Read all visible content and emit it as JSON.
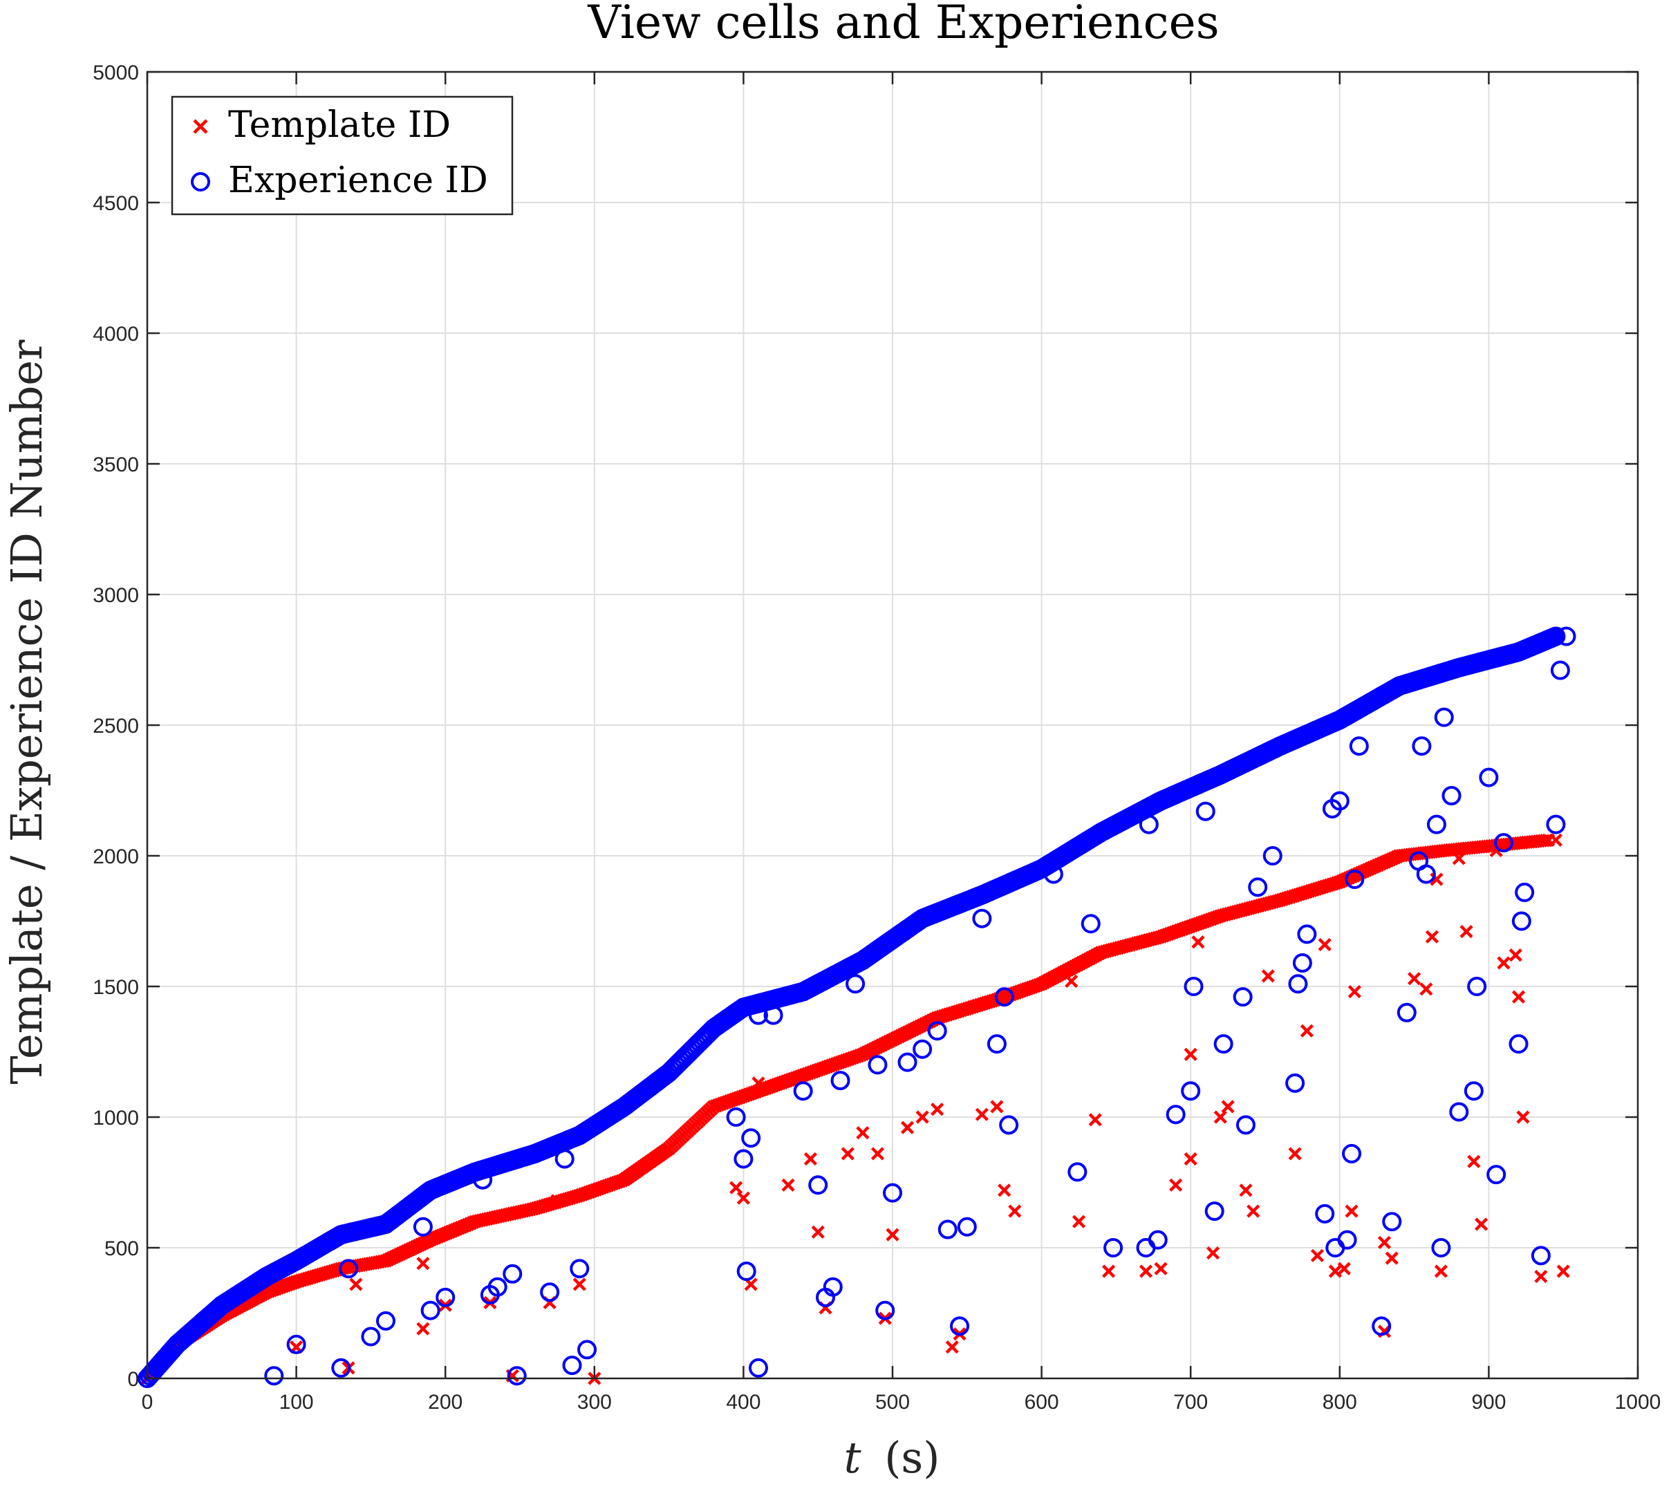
{
  "chart_data": {
    "type": "scatter",
    "title": "View cells and Experiences",
    "xlabel": "t (s)",
    "xlabel_var": "t",
    "xlabel_unit": "(s)",
    "ylabel": "Template / Experience ID Number",
    "xlim": [
      0,
      1000
    ],
    "ylim": [
      0,
      5000
    ],
    "xticks": [
      0,
      100,
      200,
      300,
      400,
      500,
      600,
      700,
      800,
      900,
      1000
    ],
    "yticks": [
      0,
      500,
      1000,
      1500,
      2000,
      2500,
      3000,
      3500,
      4000,
      4500,
      5000
    ],
    "grid": true,
    "legend_position": "top-left",
    "series": [
      {
        "name": "Template ID",
        "marker": "x",
        "color": "#ff0000",
        "trend": [
          [
            0,
            0
          ],
          [
            20,
            130
          ],
          [
            50,
            240
          ],
          [
            80,
            330
          ],
          [
            100,
            370
          ],
          [
            130,
            420
          ],
          [
            160,
            450
          ],
          [
            190,
            530
          ],
          [
            220,
            600
          ],
          [
            260,
            650
          ],
          [
            290,
            700
          ],
          [
            320,
            760
          ],
          [
            350,
            880
          ],
          [
            380,
            1040
          ],
          [
            410,
            1100
          ],
          [
            440,
            1160
          ],
          [
            480,
            1240
          ],
          [
            530,
            1380
          ],
          [
            570,
            1450
          ],
          [
            600,
            1510
          ],
          [
            640,
            1630
          ],
          [
            680,
            1690
          ],
          [
            720,
            1770
          ],
          [
            760,
            1830
          ],
          [
            800,
            1900
          ],
          [
            840,
            2000
          ],
          [
            870,
            2020
          ],
          [
            940,
            2060
          ]
        ],
        "scattered": [
          [
            5,
            20
          ],
          [
            100,
            120
          ],
          [
            135,
            40
          ],
          [
            140,
            360
          ],
          [
            185,
            190
          ],
          [
            185,
            440
          ],
          [
            200,
            280
          ],
          [
            230,
            290
          ],
          [
            245,
            10
          ],
          [
            270,
            290
          ],
          [
            275,
            680
          ],
          [
            290,
            360
          ],
          [
            300,
            0
          ],
          [
            395,
            730
          ],
          [
            400,
            690
          ],
          [
            405,
            360
          ],
          [
            410,
            1130
          ],
          [
            430,
            740
          ],
          [
            445,
            840
          ],
          [
            450,
            560
          ],
          [
            455,
            270
          ],
          [
            470,
            860
          ],
          [
            480,
            940
          ],
          [
            490,
            860
          ],
          [
            495,
            230
          ],
          [
            500,
            550
          ],
          [
            510,
            960
          ],
          [
            520,
            1000
          ],
          [
            530,
            1030
          ],
          [
            540,
            120
          ],
          [
            545,
            170
          ],
          [
            560,
            1010
          ],
          [
            570,
            1040
          ],
          [
            575,
            720
          ],
          [
            582,
            640
          ],
          [
            620,
            1520
          ],
          [
            625,
            600
          ],
          [
            636,
            990
          ],
          [
            645,
            410
          ],
          [
            670,
            410
          ],
          [
            680,
            420
          ],
          [
            690,
            740
          ],
          [
            700,
            840
          ],
          [
            700,
            1240
          ],
          [
            705,
            1670
          ],
          [
            715,
            480
          ],
          [
            720,
            1000
          ],
          [
            725,
            1040
          ],
          [
            737,
            720
          ],
          [
            742,
            640
          ],
          [
            752,
            1540
          ],
          [
            770,
            860
          ],
          [
            778,
            1330
          ],
          [
            785,
            470
          ],
          [
            790,
            1660
          ],
          [
            797,
            410
          ],
          [
            803,
            420
          ],
          [
            808,
            640
          ],
          [
            810,
            1480
          ],
          [
            830,
            180
          ],
          [
            830,
            520
          ],
          [
            835,
            460
          ],
          [
            850,
            1530
          ],
          [
            858,
            1490
          ],
          [
            862,
            1690
          ],
          [
            865,
            1910
          ],
          [
            868,
            410
          ],
          [
            880,
            1990
          ],
          [
            885,
            1710
          ],
          [
            890,
            830
          ],
          [
            895,
            590
          ],
          [
            905,
            2020
          ],
          [
            910,
            1590
          ],
          [
            918,
            1620
          ],
          [
            920,
            1460
          ],
          [
            923,
            1000
          ],
          [
            935,
            390
          ],
          [
            945,
            2060
          ],
          [
            950,
            410
          ]
        ]
      },
      {
        "name": "Experience ID",
        "marker": "o",
        "color": "#0000ff",
        "trend": [
          [
            0,
            0
          ],
          [
            20,
            130
          ],
          [
            50,
            280
          ],
          [
            80,
            390
          ],
          [
            100,
            450
          ],
          [
            130,
            550
          ],
          [
            160,
            590
          ],
          [
            190,
            720
          ],
          [
            220,
            790
          ],
          [
            260,
            860
          ],
          [
            290,
            930
          ],
          [
            320,
            1040
          ],
          [
            350,
            1170
          ],
          [
            380,
            1340
          ],
          [
            400,
            1420
          ],
          [
            440,
            1480
          ],
          [
            480,
            1600
          ],
          [
            520,
            1760
          ],
          [
            560,
            1850
          ],
          [
            600,
            1950
          ],
          [
            640,
            2090
          ],
          [
            680,
            2210
          ],
          [
            720,
            2310
          ],
          [
            760,
            2420
          ],
          [
            800,
            2520
          ],
          [
            840,
            2650
          ],
          [
            880,
            2720
          ],
          [
            920,
            2780
          ],
          [
            945,
            2840
          ]
        ],
        "scattered": [
          [
            85,
            10
          ],
          [
            100,
            130
          ],
          [
            130,
            40
          ],
          [
            135,
            420
          ],
          [
            150,
            160
          ],
          [
            160,
            220
          ],
          [
            185,
            580
          ],
          [
            190,
            260
          ],
          [
            200,
            310
          ],
          [
            225,
            760
          ],
          [
            230,
            320
          ],
          [
            235,
            350
          ],
          [
            245,
            400
          ],
          [
            248,
            10
          ],
          [
            270,
            330
          ],
          [
            280,
            840
          ],
          [
            285,
            50
          ],
          [
            290,
            420
          ],
          [
            295,
            110
          ],
          [
            395,
            1000
          ],
          [
            400,
            840
          ],
          [
            402,
            410
          ],
          [
            405,
            920
          ],
          [
            410,
            40
          ],
          [
            410,
            1390
          ],
          [
            420,
            1390
          ],
          [
            440,
            1100
          ],
          [
            450,
            740
          ],
          [
            455,
            310
          ],
          [
            460,
            350
          ],
          [
            465,
            1140
          ],
          [
            475,
            1510
          ],
          [
            490,
            1200
          ],
          [
            495,
            260
          ],
          [
            500,
            710
          ],
          [
            510,
            1210
          ],
          [
            520,
            1260
          ],
          [
            530,
            1330
          ],
          [
            537,
            570
          ],
          [
            545,
            200
          ],
          [
            550,
            580
          ],
          [
            560,
            1760
          ],
          [
            570,
            1280
          ],
          [
            575,
            1460
          ],
          [
            578,
            970
          ],
          [
            608,
            1930
          ],
          [
            624,
            790
          ],
          [
            633,
            1740
          ],
          [
            648,
            500
          ],
          [
            670,
            500
          ],
          [
            672,
            2120
          ],
          [
            678,
            530
          ],
          [
            690,
            1010
          ],
          [
            700,
            1100
          ],
          [
            702,
            1500
          ],
          [
            710,
            2170
          ],
          [
            716,
            640
          ],
          [
            722,
            1280
          ],
          [
            735,
            1460
          ],
          [
            737,
            970
          ],
          [
            745,
            1880
          ],
          [
            755,
            2000
          ],
          [
            770,
            1130
          ],
          [
            772,
            1510
          ],
          [
            775,
            1590
          ],
          [
            778,
            1700
          ],
          [
            790,
            630
          ],
          [
            795,
            2180
          ],
          [
            797,
            500
          ],
          [
            800,
            2210
          ],
          [
            805,
            530
          ],
          [
            808,
            860
          ],
          [
            810,
            1910
          ],
          [
            813,
            2420
          ],
          [
            828,
            200
          ],
          [
            835,
            600
          ],
          [
            845,
            1400
          ],
          [
            853,
            1980
          ],
          [
            855,
            2420
          ],
          [
            858,
            1930
          ],
          [
            865,
            2120
          ],
          [
            868,
            500
          ],
          [
            870,
            2530
          ],
          [
            875,
            2230
          ],
          [
            880,
            1020
          ],
          [
            890,
            1100
          ],
          [
            892,
            1500
          ],
          [
            900,
            2300
          ],
          [
            905,
            780
          ],
          [
            910,
            2050
          ],
          [
            920,
            1280
          ],
          [
            922,
            1750
          ],
          [
            924,
            1860
          ],
          [
            935,
            470
          ],
          [
            945,
            2120
          ],
          [
            948,
            2710
          ],
          [
            952,
            2840
          ]
        ]
      }
    ]
  }
}
